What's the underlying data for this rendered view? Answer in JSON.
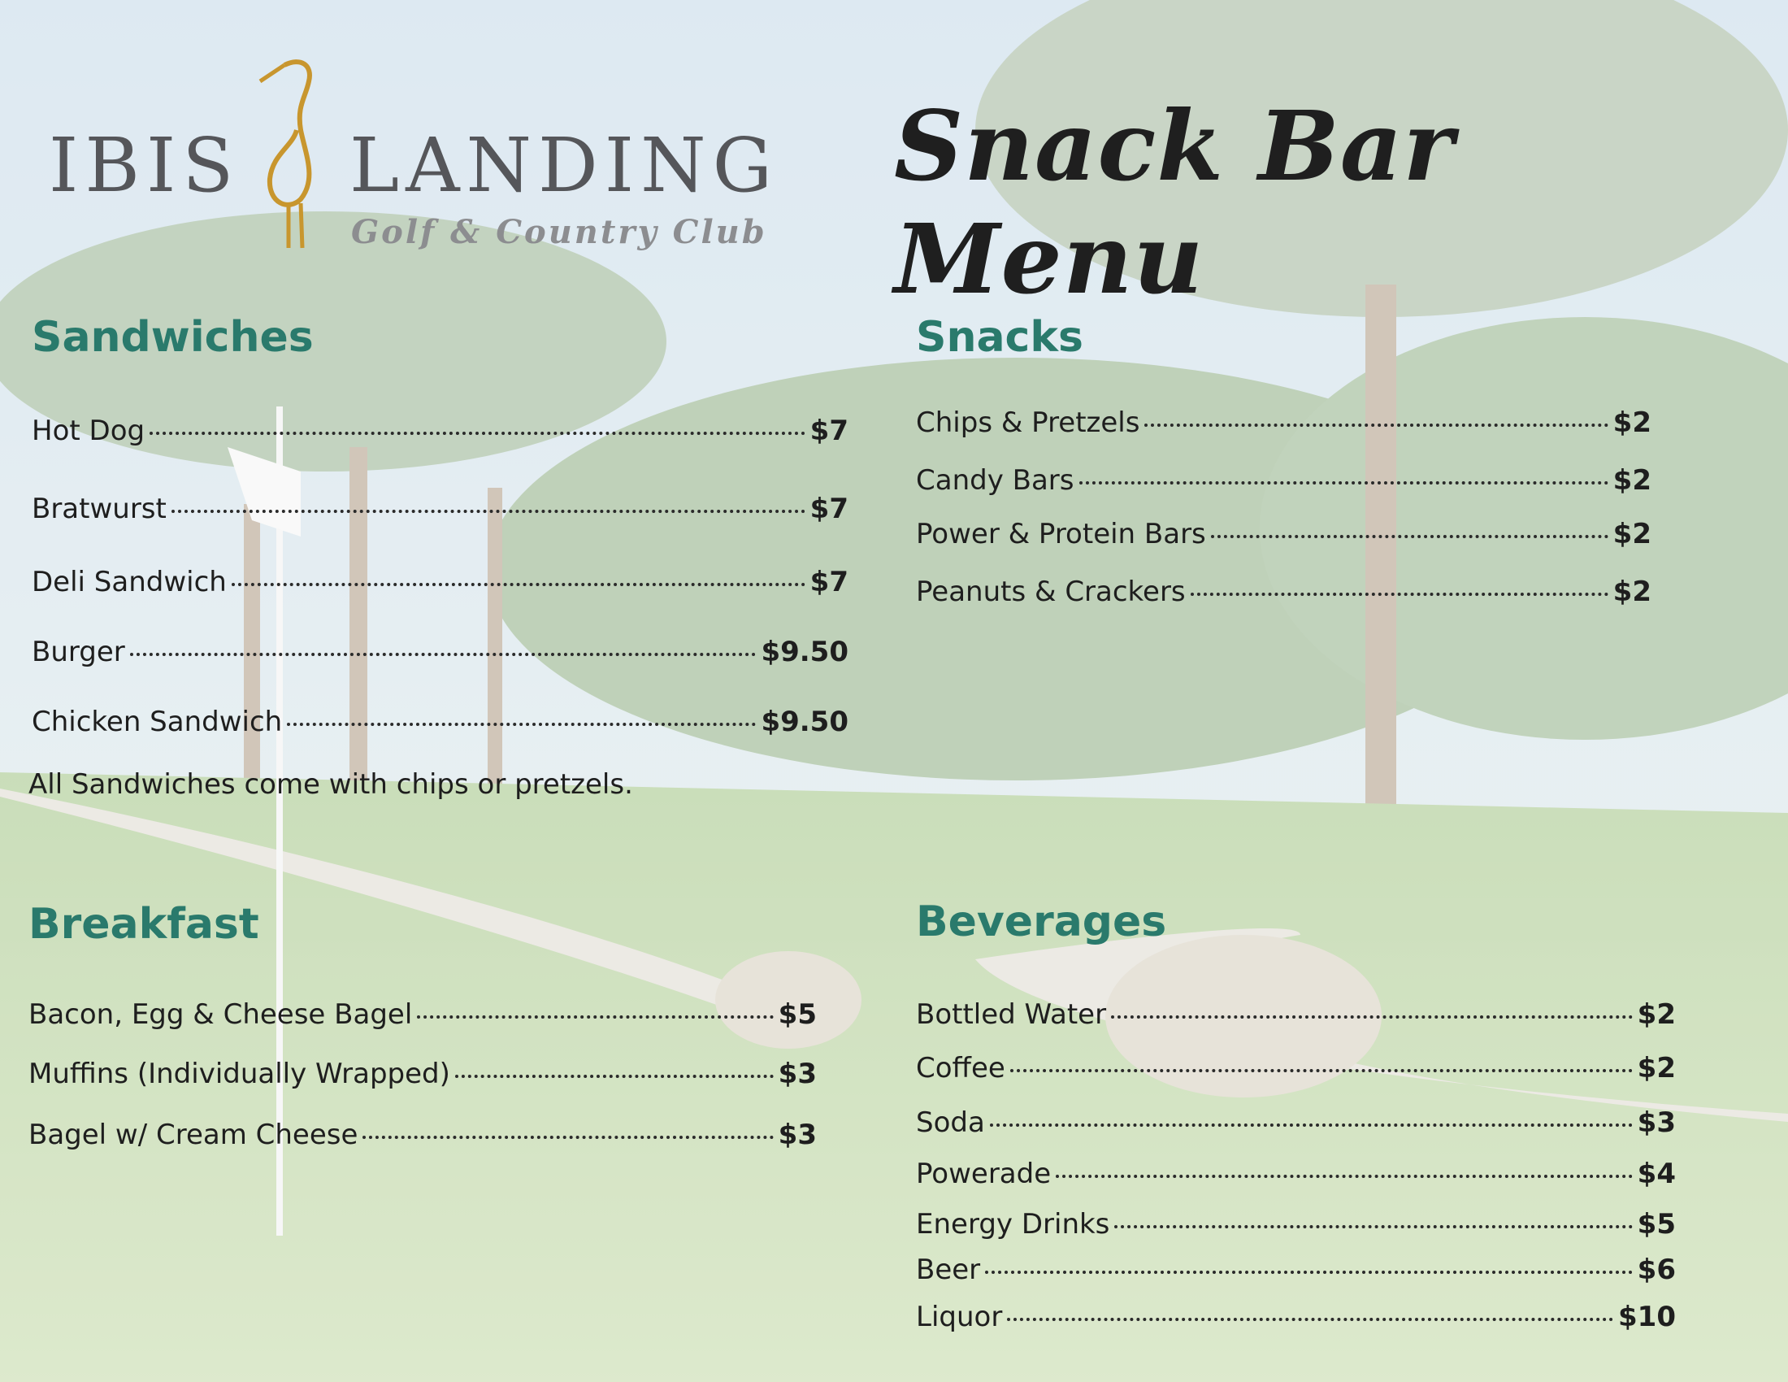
{
  "logo": {
    "word1": "IBIS",
    "word2": "LANDING",
    "subtitle": "Golf & Country Club"
  },
  "title": "Snack Bar Menu",
  "sandwiches": {
    "heading": "Sandwiches",
    "items": [
      {
        "name": "Hot Dog",
        "price": "$7"
      },
      {
        "name": "Bratwurst",
        "price": "$7"
      },
      {
        "name": "Deli Sandwich",
        "price": "$7"
      },
      {
        "name": "Burger",
        "price": "$9.50"
      },
      {
        "name": "Chicken Sandwich",
        "price": "$9.50"
      }
    ],
    "note": "All Sandwiches come with chips or pretzels."
  },
  "breakfast": {
    "heading": "Breakfast",
    "items": [
      {
        "name": "Bacon, Egg & Cheese Bagel",
        "price": "$5"
      },
      {
        "name": "Muffins (Individually Wrapped)",
        "price": "$3"
      },
      {
        "name": "Bagel w/ Cream Cheese",
        "price": "$3"
      }
    ]
  },
  "snacks": {
    "heading": "Snacks",
    "items": [
      {
        "name": "Chips & Pretzels",
        "price": "$2"
      },
      {
        "name": "Candy Bars",
        "price": "$2"
      },
      {
        "name": "Power & Protein Bars",
        "price": "$2"
      },
      {
        "name": "Peanuts & Crackers",
        "price": "$2"
      }
    ]
  },
  "beverages": {
    "heading": "Beverages",
    "items": [
      {
        "name": "Bottled Water",
        "price": "$2"
      },
      {
        "name": "Coffee",
        "price": "$2"
      },
      {
        "name": "Soda",
        "price": "$3"
      },
      {
        "name": "Powerade",
        "price": "$4"
      },
      {
        "name": "Energy Drinks",
        "price": "$5"
      },
      {
        "name": "Beer",
        "price": "$6"
      },
      {
        "name": "Liquor",
        "price": "$10"
      }
    ]
  }
}
